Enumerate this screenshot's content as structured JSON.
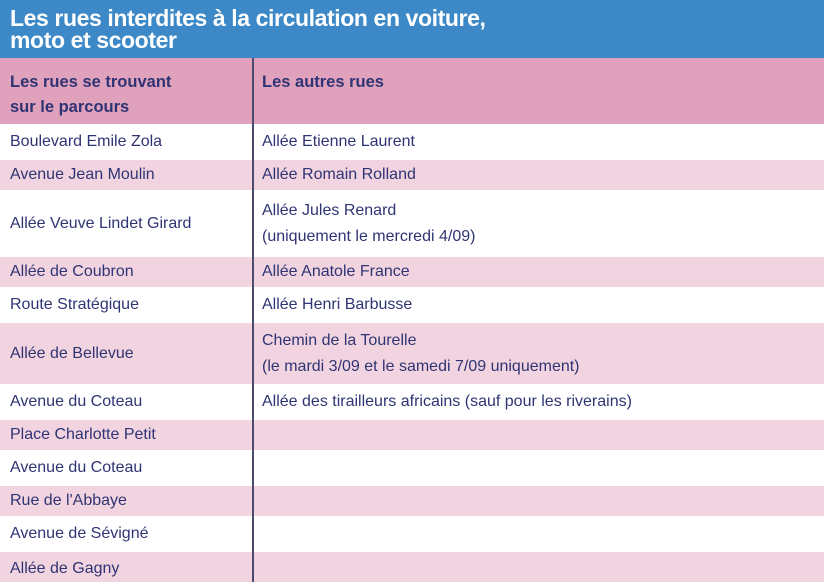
{
  "banner": {
    "title_line1": "Les rues interdites à la circulation en voiture,",
    "title_line2": "moto et scooter"
  },
  "table": {
    "header": {
      "col1_line1": "Les rues se trouvant",
      "col1_line2": "sur le parcours",
      "col2": "Les autres rues"
    },
    "rows": [
      {
        "parcours": "Boulevard Emile Zola",
        "autres": [
          "Allée Etienne Laurent"
        ]
      },
      {
        "parcours": "Avenue Jean Moulin",
        "autres": [
          "Allée Romain Rolland"
        ]
      },
      {
        "parcours": "Allée Veuve Lindet Girard",
        "autres": [
          "Allée Jules Renard",
          "(uniquement le mercredi 4/09)"
        ]
      },
      {
        "parcours": "Allée de Coubron",
        "autres": [
          "Allée Anatole France"
        ]
      },
      {
        "parcours": "Route Stratégique",
        "autres": [
          "Allée Henri Barbusse"
        ]
      },
      {
        "parcours": "Allée de Bellevue",
        "autres": [
          "Chemin de la Tourelle",
          "(le mardi 3/09 et le samedi 7/09 uniquement)"
        ]
      },
      {
        "parcours": "Avenue du Coteau",
        "autres": [
          "Allée des tirailleurs africains (sauf pour les riverains)"
        ]
      },
      {
        "parcours": "Place Charlotte Petit",
        "autres": []
      },
      {
        "parcours": "Avenue du Coteau",
        "autres": []
      },
      {
        "parcours": "Rue de l'Abbaye",
        "autres": []
      },
      {
        "parcours": "Avenue de Sévigné",
        "autres": []
      },
      {
        "parcours": "Allée de Gagny",
        "autres": []
      }
    ]
  },
  "colors": {
    "banner_blue": "#3d88c7",
    "header_pink": "#e0a1bc",
    "row_pink": "#f2d4e0",
    "text_navy": "#2f3474",
    "divider": "#4b4b6e",
    "title_white": "#ffffff"
  }
}
